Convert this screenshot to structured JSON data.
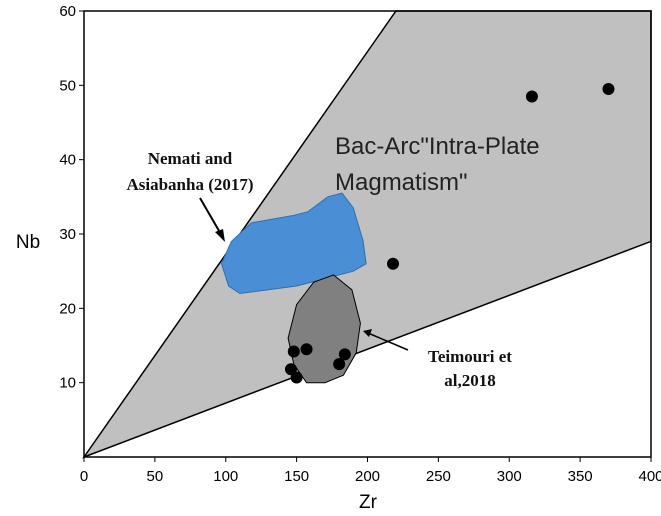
{
  "chart_data": {
    "type": "scatter",
    "xlabel": "Zr",
    "ylabel": "Nb",
    "xlim": [
      0,
      400
    ],
    "ylim": [
      0,
      60
    ],
    "x_ticks": [
      0,
      50,
      100,
      150,
      200,
      250,
      300,
      350,
      400
    ],
    "y_ticks": [
      10,
      20,
      30,
      40,
      50,
      60
    ],
    "x_tick_labels": [
      "0",
      "50",
      "100",
      "150",
      "200",
      "250",
      "300",
      "350",
      "400"
    ],
    "y_tick_labels": [
      "10",
      "20",
      "30",
      "40",
      "50",
      "60"
    ],
    "region_label_lines": [
      "Bac-Arc\"Intra-Plate",
      "Magmatism\""
    ],
    "region_boundary": [
      [
        0,
        0
      ],
      [
        220,
        60
      ],
      [
        400,
        60
      ],
      [
        400,
        29
      ]
    ],
    "fields": [
      {
        "label_lines": [
          "Nemati and",
          "Asiabanha (2017)"
        ],
        "color": "#4a8fd6",
        "outline": [
          [
            97,
            26
          ],
          [
            104,
            29
          ],
          [
            118,
            31.5
          ],
          [
            148,
            32.5
          ],
          [
            158,
            33
          ],
          [
            172,
            35
          ],
          [
            182,
            35.5
          ],
          [
            190,
            33.5
          ],
          [
            197,
            29
          ],
          [
            199,
            26
          ],
          [
            190,
            25
          ],
          [
            170,
            24
          ],
          [
            150,
            23
          ],
          [
            130,
            22.5
          ],
          [
            110,
            22
          ],
          [
            102,
            23
          ]
        ]
      },
      {
        "label_lines": [
          "Teimouri et",
          "al,2018"
        ],
        "color": "#808080",
        "outline": [
          [
            148,
            12.5
          ],
          [
            144,
            16
          ],
          [
            150,
            20.5
          ],
          [
            162,
            23.5
          ],
          [
            176,
            24.5
          ],
          [
            189,
            22.5
          ],
          [
            195,
            18
          ],
          [
            192,
            14
          ],
          [
            183,
            11
          ],
          [
            170,
            10
          ],
          [
            157,
            10
          ]
        ]
      }
    ],
    "points": [
      {
        "x": 146,
        "y": 11.8
      },
      {
        "x": 148,
        "y": 14.2
      },
      {
        "x": 150,
        "y": 10.7
      },
      {
        "x": 157,
        "y": 14.5
      },
      {
        "x": 180,
        "y": 12.5
      },
      {
        "x": 184,
        "y": 13.8
      },
      {
        "x": 218,
        "y": 26
      },
      {
        "x": 316,
        "y": 48.5
      },
      {
        "x": 370,
        "y": 49.5
      }
    ],
    "colors": {
      "region_fill": "#c0c0c0",
      "marker": "#000000"
    },
    "grid": false
  }
}
